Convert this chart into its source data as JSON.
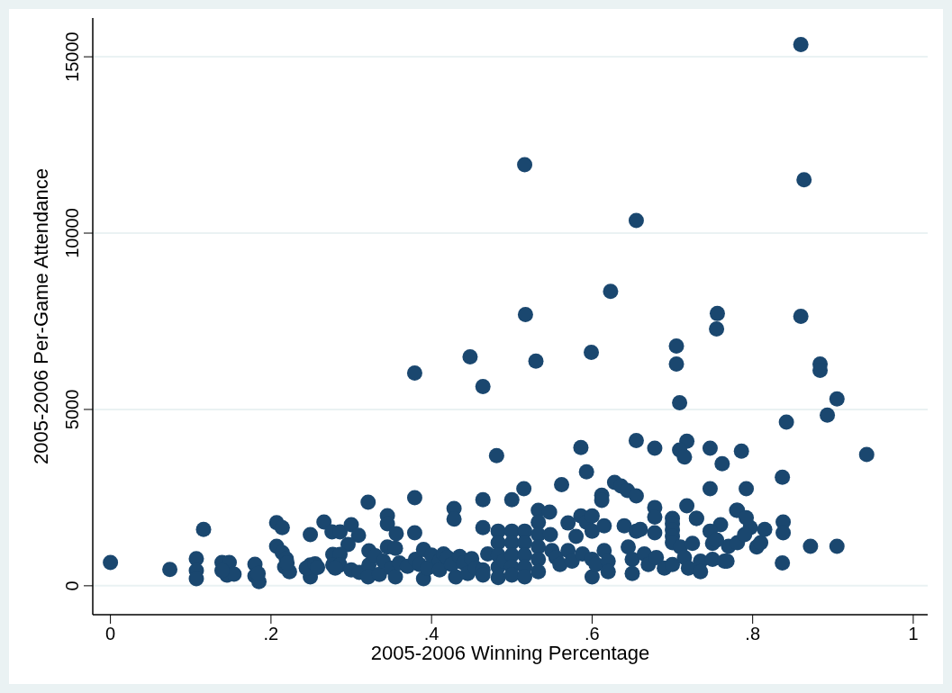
{
  "chart_data": {
    "type": "scatter",
    "xlabel": "2005-2006 Winning Percentage",
    "ylabel": "2005-2006 Per-Game Attendance",
    "xlim": [
      -0.022,
      1.018
    ],
    "ylim": [
      -820,
      16100
    ],
    "xticks": [
      {
        "value": 0,
        "label": "0"
      },
      {
        "value": 0.2,
        "label": ".2"
      },
      {
        "value": 0.4,
        "label": ".4"
      },
      {
        "value": 0.6,
        "label": ".6"
      },
      {
        "value": 0.8,
        "label": ".8"
      },
      {
        "value": 1,
        "label": "1"
      }
    ],
    "yticks": [
      0,
      5000,
      10000,
      15000
    ],
    "grid": "y",
    "marker": "circle",
    "series": [
      {
        "color": "#1a476f",
        "x": [
          0.86,
          0.516,
          0.864,
          0.655,
          0.623,
          0.517,
          0.756,
          0.86,
          0.755,
          0.705,
          0.705,
          0.884,
          0.884,
          0.448,
          0.379,
          0.53,
          0.599,
          0.464,
          0.709,
          0.905,
          0.893,
          0.842,
          0.655,
          0.718,
          0.678,
          0.709,
          0.747,
          0.586,
          0.942,
          0.715,
          0.786,
          0.762,
          0.481,
          0.837,
          0.593,
          0.562,
          0.628,
          0.636,
          0.644,
          0.655,
          0.612,
          0.612,
          0.515,
          0.747,
          0.792,
          0.5,
          0.464,
          0.379,
          0.321,
          0.428,
          0.428,
          0.718,
          0.781,
          0.678,
          0.7,
          0.7,
          0.7,
          0.7,
          0.7,
          0.76,
          0.797,
          0.73,
          0.838,
          0.838,
          0.872,
          0.77,
          0.781,
          0,
          0.074,
          0.116,
          0.107,
          0.107,
          0.107,
          0.139,
          0.148,
          0.145,
          0.154,
          0.139,
          0.18,
          0.18,
          0.185,
          0.184,
          0.207,
          0.214,
          0.207,
          0.214,
          0.219,
          0.217,
          0.223,
          0.22,
          0.249,
          0.249,
          0.249,
          0.244,
          0.255,
          0.258,
          0.266,
          0.276,
          0.286,
          0.3,
          0.309,
          0.296,
          0.277,
          0.286,
          0.277,
          0.286,
          0.28,
          0.3,
          0.31,
          0.322,
          0.322,
          0.321,
          0.33,
          0.335,
          0.345,
          0.345,
          0.345,
          0.355,
          0.356,
          0.34,
          0.35,
          0.355,
          0.36,
          0.379,
          0.37,
          0.38,
          0.385,
          0.39,
          0.39,
          0.395,
          0.4,
          0.41,
          0.41,
          0.415,
          0.42,
          0.425,
          0.43,
          0.435,
          0.44,
          0.445,
          0.45,
          0.455,
          0.464,
          0.464,
          0.464,
          0.47,
          0.483,
          0.483,
          0.483,
          0.483,
          0.483,
          0.49,
          0.5,
          0.5,
          0.5,
          0.5,
          0.5,
          0.516,
          0.516,
          0.516,
          0.516,
          0.516,
          0.533,
          0.533,
          0.533,
          0.533,
          0.533,
          0.533,
          0.547,
          0.548,
          0.55,
          0.555,
          0.56,
          0.57,
          0.57,
          0.575,
          0.58,
          0.586,
          0.588,
          0.593,
          0.6,
          0.6,
          0.6,
          0.6,
          0.605,
          0.615,
          0.615,
          0.62,
          0.62,
          0.64,
          0.645,
          0.65,
          0.65,
          0.655,
          0.66,
          0.665,
          0.67,
          0.678,
          0.678,
          0.68,
          0.69,
          0.7,
          0.71,
          0.715,
          0.72,
          0.73,
          0.725,
          0.735,
          0.735,
          0.747,
          0.75,
          0.75,
          0.755,
          0.765,
          0.768,
          0.78,
          0.79,
          0.792,
          0.805,
          0.81,
          0.815,
          0.837,
          0.905
        ],
        "values": [
          15350,
          11940,
          11510,
          10360,
          8350,
          7690,
          7720,
          7640,
          7280,
          6800,
          6290,
          6290,
          6110,
          6490,
          6030,
          6370,
          6620,
          5650,
          5190,
          5300,
          4840,
          4640,
          4120,
          4100,
          3900,
          3850,
          3900,
          3920,
          3720,
          3650,
          3820,
          3460,
          3690,
          3080,
          3230,
          2870,
          2930,
          2830,
          2700,
          2550,
          2570,
          2420,
          2750,
          2750,
          2750,
          2440,
          2440,
          2500,
          2370,
          2190,
          1890,
          2270,
          2140,
          2220,
          1910,
          1760,
          1580,
          1400,
          1220,
          1730,
          1650,
          1910,
          1810,
          1500,
          1120,
          1120,
          1220,
          660,
          460,
          1600,
          770,
          430,
          200,
          660,
          660,
          300,
          330,
          430,
          610,
          280,
          120,
          350,
          1790,
          1650,
          1120,
          940,
          760,
          530,
          400,
          650,
          1450,
          590,
          250,
          500,
          620,
          520,
          1810,
          1530,
          1530,
          1730,
          1430,
          1170,
          890,
          890,
          590,
          590,
          500,
          450,
          380,
          990,
          590,
          250,
          850,
          320,
          1990,
          1760,
          1100,
          1060,
          1480,
          700,
          500,
          250,
          650,
          1500,
          550,
          750,
          600,
          1030,
          200,
          500,
          870,
          700,
          450,
          900,
          800,
          600,
          250,
          830,
          650,
          350,
          770,
          500,
          1650,
          450,
          300,
          900,
          1550,
          1220,
          870,
          530,
          230,
          700,
          1550,
          1220,
          870,
          530,
          300,
          1550,
          1220,
          870,
          530,
          250,
          2140,
          1800,
          1450,
          1100,
          750,
          400,
          2090,
          1450,
          1000,
          800,
          600,
          1780,
          1000,
          700,
          1400,
          1980,
          900,
          1800,
          1980,
          1550,
          750,
          250,
          600,
          1700,
          1000,
          700,
          400,
          1700,
          1100,
          750,
          350,
          1550,
          1600,
          900,
          600,
          1950,
          1500,
          800,
          500,
          600,
          1100,
          800,
          500,
          1910,
          1200,
          700,
          400,
          1550,
          1200,
          750,
          1300,
          700,
          700,
          2140,
          1450,
          1930,
          1100,
          1220,
          1600,
          650,
          1120
        ]
      }
    ]
  }
}
